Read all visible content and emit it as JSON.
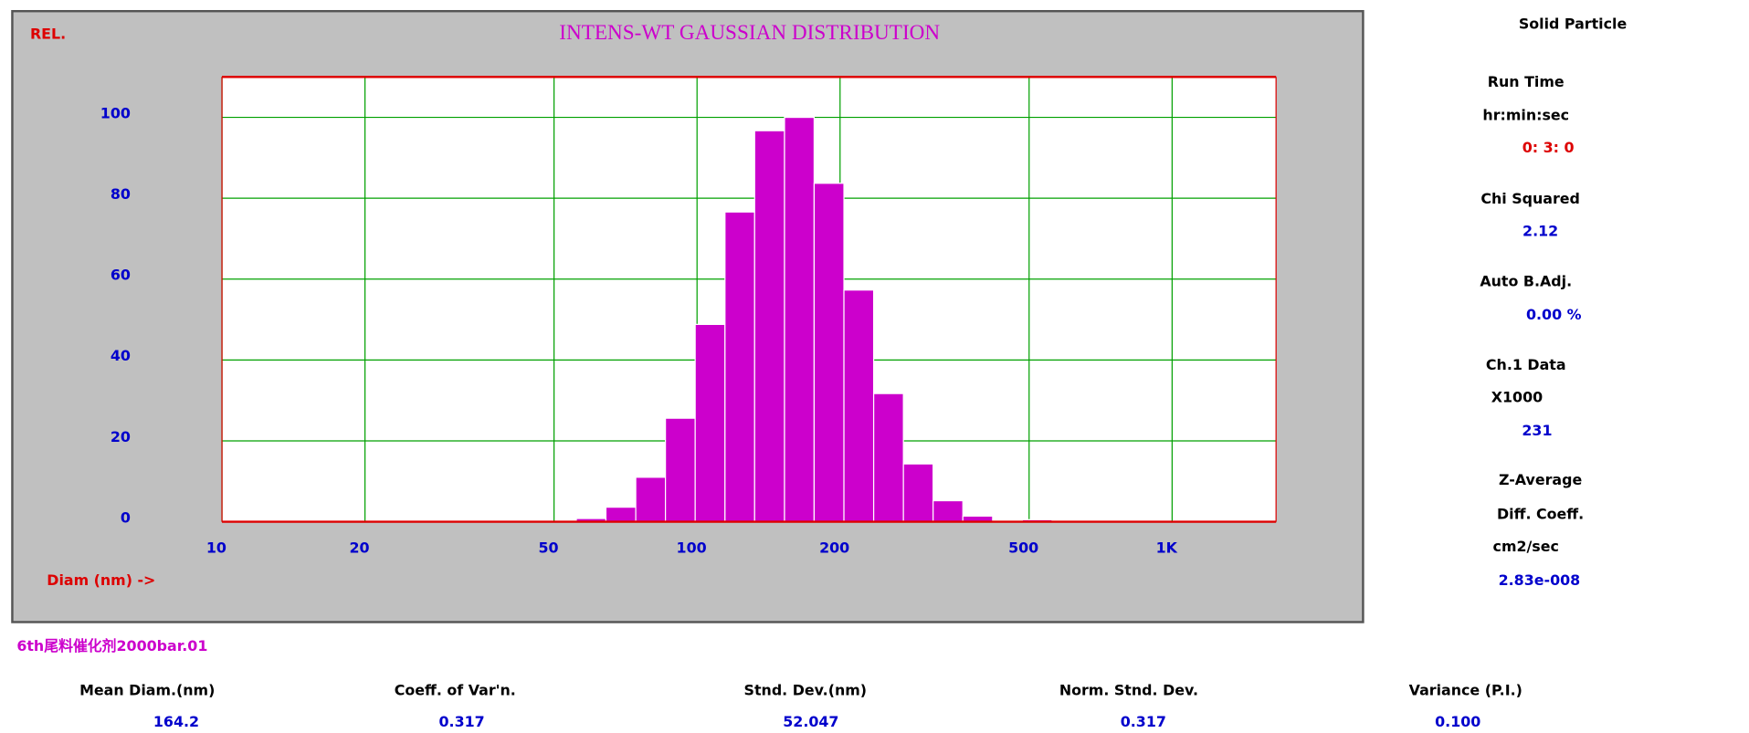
{
  "chart_data": {
    "type": "histogram",
    "title": "INTENS-WT GAUSSIAN DISTRIBUTION",
    "y_label": "REL.",
    "x_label": "Diam (nm) ->",
    "bins": [
      55.7,
      64.3,
      74.3,
      85.8,
      99.1,
      114.5,
      132.2,
      152.8,
      176.4,
      203.8,
      235.4,
      271.9,
      314.0,
      362.7,
      419.0,
      483.9,
      558.9
    ],
    "values": [
      0.8,
      3.6,
      11,
      25.6,
      48.8,
      76.6,
      96.7,
      100,
      83.7,
      57.3,
      31.7,
      14.3,
      5.2,
      1.4,
      0,
      0.5
    ],
    "color": "#cc00cc",
    "log_x": true,
    "grid": true,
    "xlim": [
      10,
      1655
    ],
    "ylim": [
      0,
      110
    ],
    "xticks": [
      10,
      20,
      50,
      100,
      200,
      500,
      {
        "value": 1000,
        "label": "1K"
      }
    ],
    "yticks": [
      0,
      20,
      40,
      60,
      80,
      100
    ]
  },
  "side_panel": [
    "Solid Particle",
    "Run Time",
    "hr:min:sec",
    "0: 3: 0",
    "Chi Squared",
    "2.12",
    "Auto B.Adj.",
    "0.00 %",
    "Ch.1 Data",
    "X1000",
    "231",
    "Z-Average",
    "Diff. Coeff.",
    "cm2/sec",
    "2.83e-008"
  ],
  "sample_name": "6th尾料催化剂2000bar.01",
  "stats": [
    {
      "label": "Mean Diam.(nm)",
      "value": "164.2"
    },
    {
      "label": "Coeff. of Var'n.",
      "value": "0.317"
    },
    {
      "label": "Stnd. Dev.(nm)",
      "value": "52.047"
    },
    {
      "label": "Norm. Stnd. Dev.",
      "value": "0.317"
    },
    {
      "label": "Variance (P.I.)",
      "value": "0.100"
    }
  ]
}
